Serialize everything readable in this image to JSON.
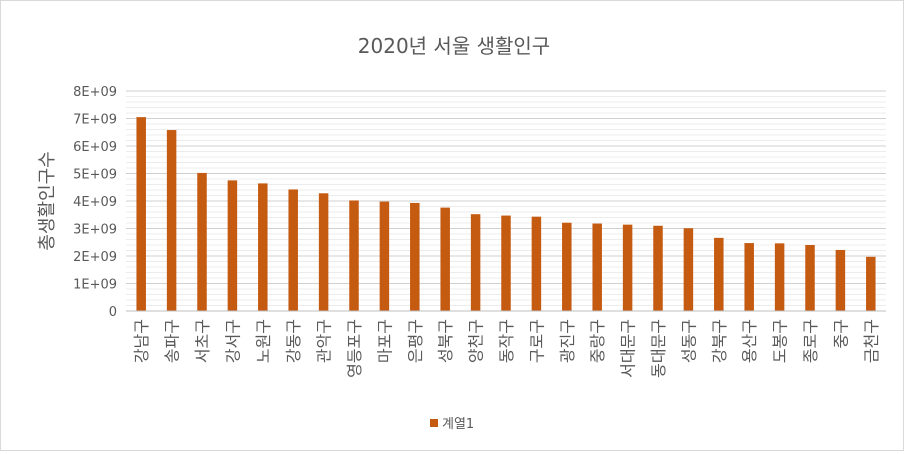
{
  "chart_data": {
    "type": "bar",
    "title": "2020년 서울 생활인구",
    "xlabel": "",
    "ylabel": "총생활인구수",
    "ylim": [
      0,
      8000000000
    ],
    "yticks": [
      "0",
      "1E+09",
      "2E+09",
      "3E+09",
      "4E+09",
      "5E+09",
      "6E+09",
      "7E+09",
      "8E+09"
    ],
    "grid": true,
    "legend_position": "bottom",
    "categories": [
      "강남구",
      "송파구",
      "서초구",
      "강서구",
      "노원구",
      "강동구",
      "관악구",
      "영등포구",
      "마포구",
      "은평구",
      "성북구",
      "양천구",
      "동작구",
      "구로구",
      "광진구",
      "중랑구",
      "서대문구",
      "동대문구",
      "성동구",
      "강북구",
      "용산구",
      "도봉구",
      "종로구",
      "중구",
      "금천구"
    ],
    "series": [
      {
        "name": "계열1",
        "color": "#c55a11",
        "values": [
          7050000000,
          6580000000,
          5020000000,
          4750000000,
          4640000000,
          4420000000,
          4280000000,
          4020000000,
          3980000000,
          3930000000,
          3760000000,
          3520000000,
          3470000000,
          3430000000,
          3210000000,
          3180000000,
          3140000000,
          3100000000,
          3010000000,
          2660000000,
          2470000000,
          2460000000,
          2400000000,
          2220000000,
          1970000000
        ]
      }
    ]
  }
}
